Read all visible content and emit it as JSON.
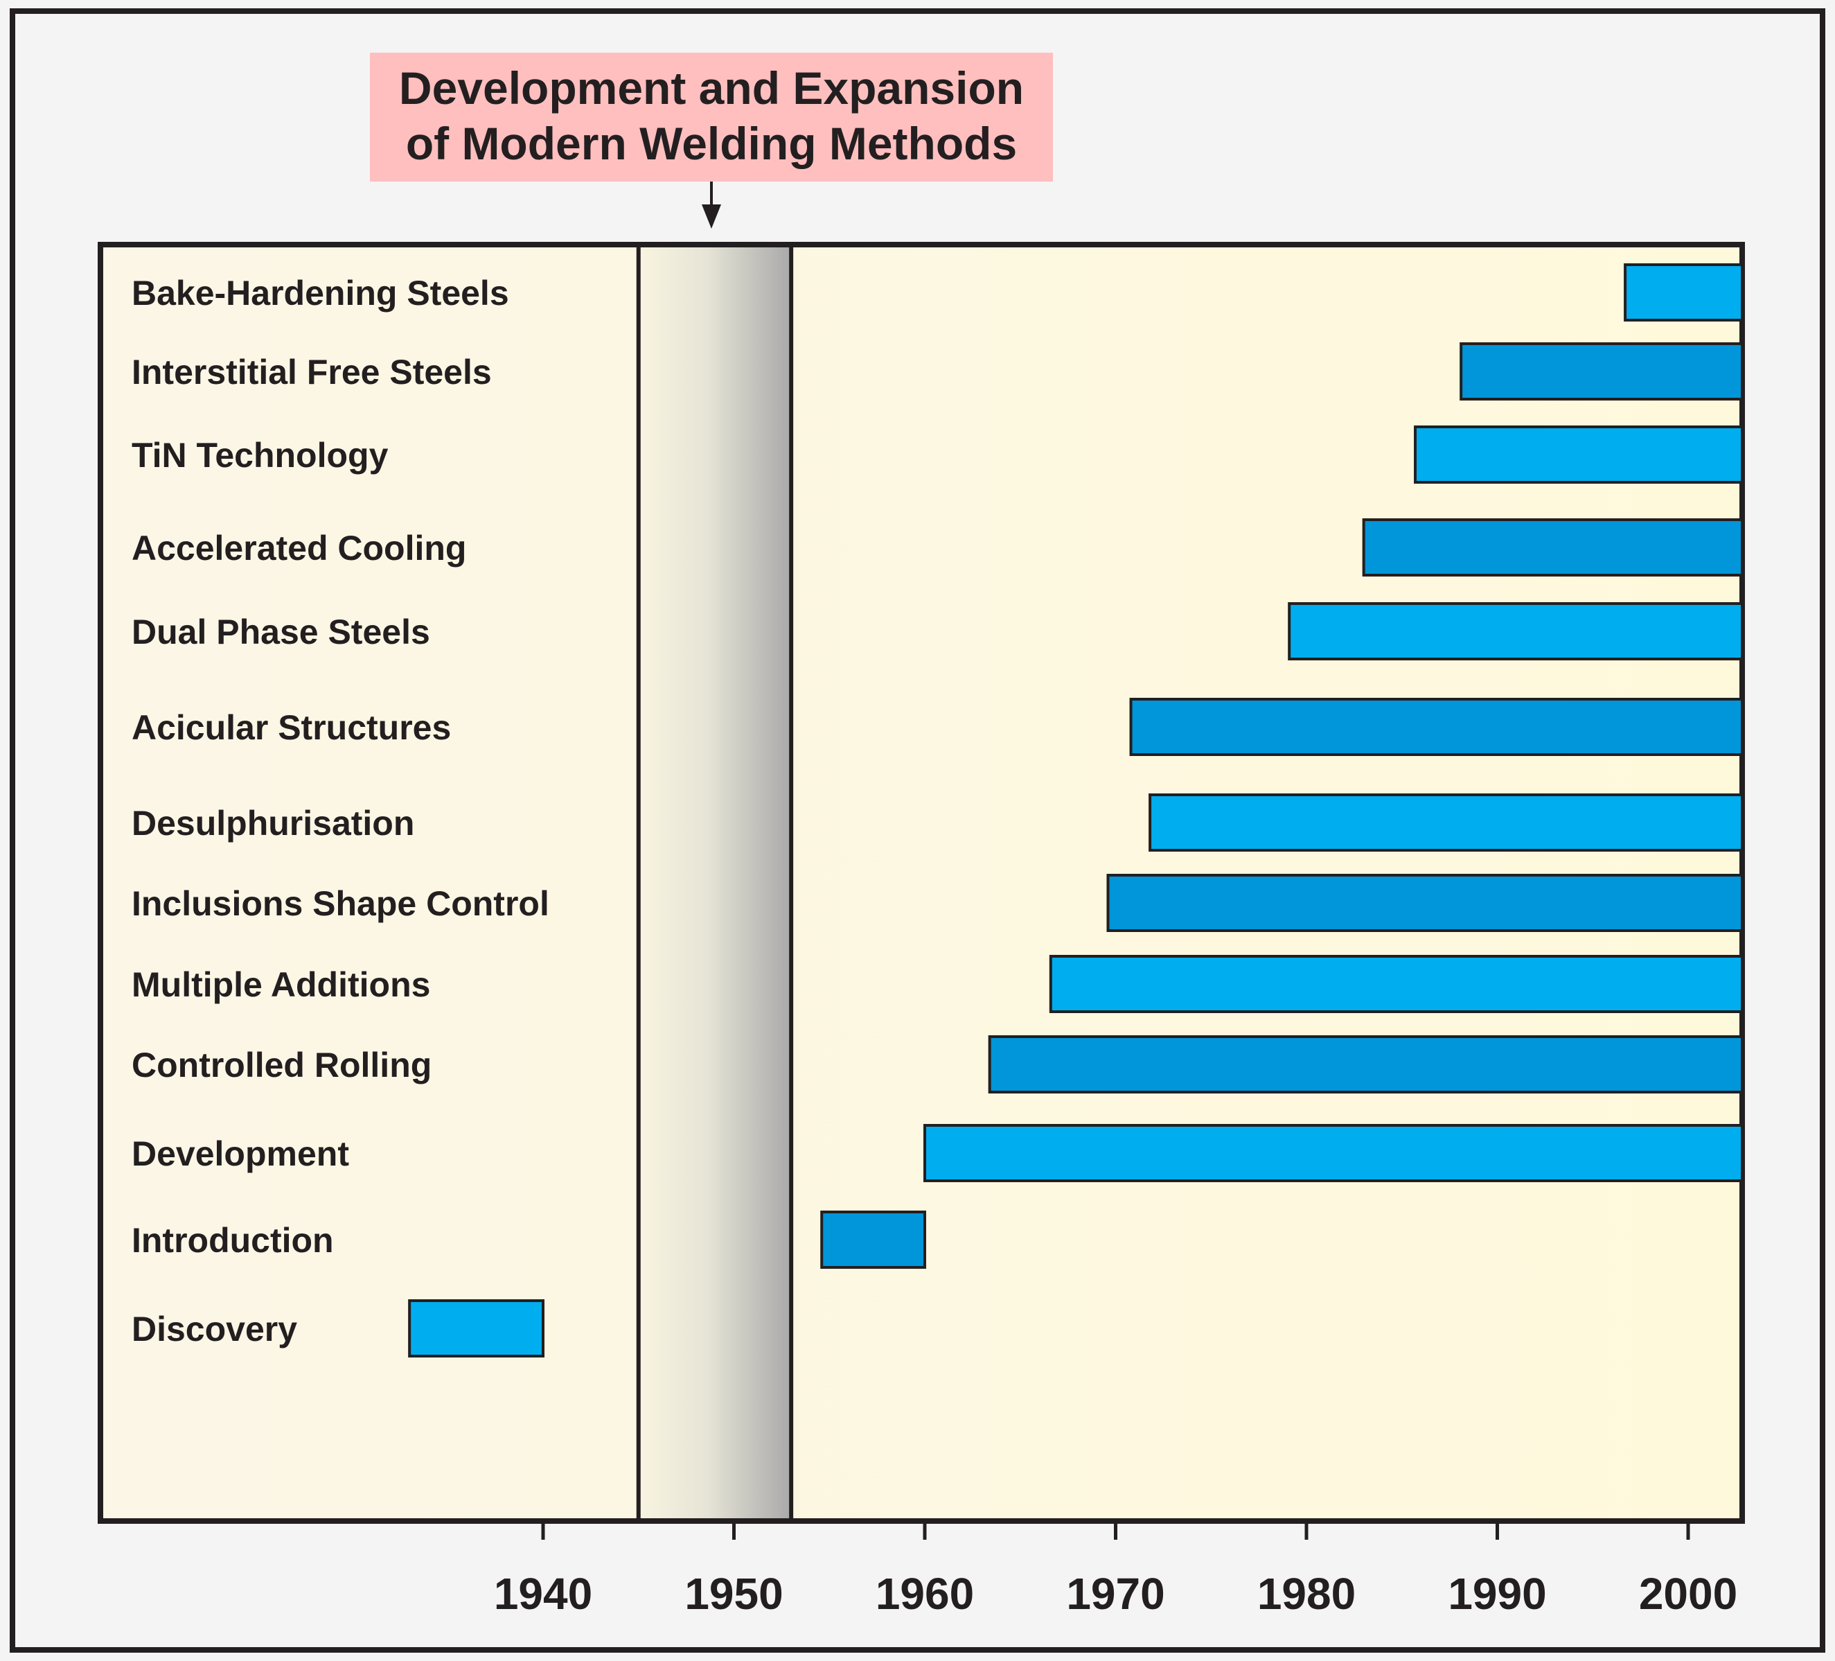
{
  "chart_data": {
    "type": "bar",
    "orientation": "horizontal",
    "title_line1": "Development and Expansion",
    "title_line2": "of Modern Welding Methods",
    "xlim": [
      1917,
      2003
    ],
    "ticks": [
      1940,
      1950,
      1960,
      1970,
      1980,
      1990,
      2000
    ],
    "tick_labels": [
      "1940",
      "1950",
      "1960",
      "1970",
      "1980",
      "1990",
      "2000"
    ],
    "highlight_band": [
      1945,
      1953
    ],
    "colors": {
      "light": "#00adee",
      "dark": "#0096d9",
      "outline": "#231f20",
      "title_bg": "#ffbfbf"
    },
    "bars": [
      {
        "label": "Bake-Hardening Steels",
        "start": 1996.7,
        "end": 2003,
        "tone": "light"
      },
      {
        "label": "Interstitial Free Steels",
        "start": 1988.1,
        "end": 2003,
        "tone": "dark"
      },
      {
        "label": "TiN Technology",
        "start": 1985.7,
        "end": 2003,
        "tone": "light"
      },
      {
        "label": "Accelerated Cooling",
        "start": 1983.0,
        "end": 2003,
        "tone": "dark"
      },
      {
        "label": "Dual Phase Steels",
        "start": 1979.1,
        "end": 2003,
        "tone": "light"
      },
      {
        "label": "Acicular Structures",
        "start": 1970.8,
        "end": 2003,
        "tone": "dark"
      },
      {
        "label": "Desulphurisation",
        "start": 1971.8,
        "end": 2003,
        "tone": "light"
      },
      {
        "label": "Inclusions Shape Control",
        "start": 1969.6,
        "end": 2003,
        "tone": "dark"
      },
      {
        "label": "Multiple Additions",
        "start": 1966.6,
        "end": 2003,
        "tone": "light"
      },
      {
        "label": "Controlled Rolling",
        "start": 1963.4,
        "end": 2003,
        "tone": "dark"
      },
      {
        "label": "Development",
        "start": 1960.0,
        "end": 2003,
        "tone": "light"
      },
      {
        "label": "Introduction",
        "start": 1954.6,
        "end": 1960.0,
        "tone": "dark"
      },
      {
        "label": "Discovery",
        "start": 1933.0,
        "end": 1940.0,
        "tone": "light"
      }
    ]
  }
}
